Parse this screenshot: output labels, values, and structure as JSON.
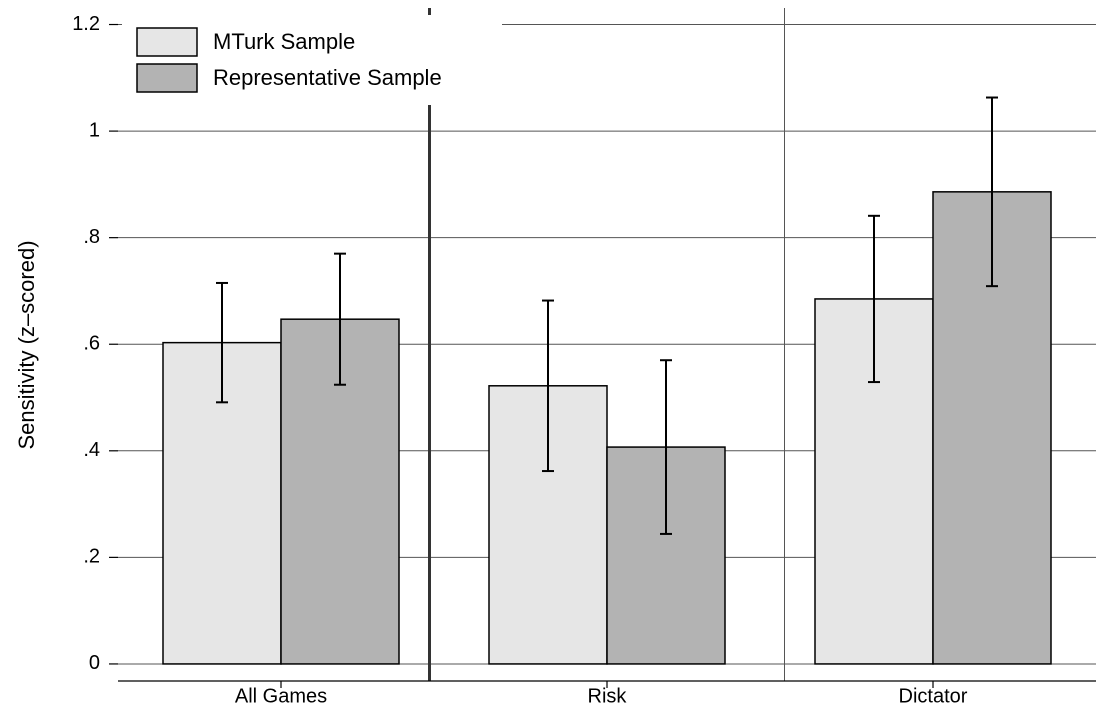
{
  "chart_data": {
    "type": "bar",
    "y_label": "Sensitivity (z–scored)",
    "categories": [
      "All Games",
      "Risk",
      "Dictator"
    ],
    "series": [
      {
        "name": "MTurk Sample",
        "color": "#e6e6e6",
        "values": [
          0.603,
          0.522,
          0.685
        ],
        "errors": [
          0.112,
          0.16,
          0.156
        ]
      },
      {
        "name": "Representative Sample",
        "color": "#b3b3b3",
        "values": [
          0.647,
          0.407,
          0.886
        ],
        "errors": [
          0.123,
          0.163,
          0.177
        ]
      }
    ],
    "ylim": [
      -0.032,
      1.231
    ],
    "yticks": [
      0,
      {
        "value": 0.2,
        "label": ".2"
      },
      {
        "value": 0.4,
        "label": ".4"
      },
      {
        "value": 0.6,
        "label": ".6"
      },
      {
        "value": 0.8,
        "label": ".8"
      },
      1,
      1.2
    ],
    "grid": true,
    "legend": "top-left"
  }
}
